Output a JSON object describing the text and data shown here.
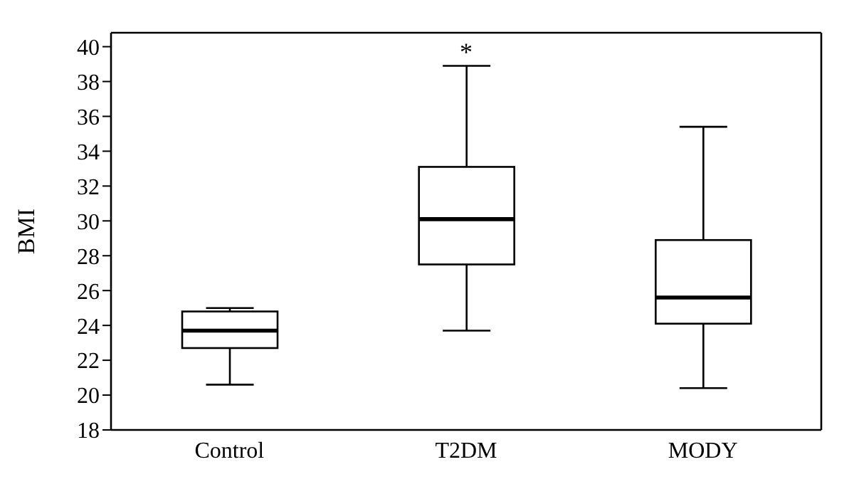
{
  "chart_data": {
    "type": "box",
    "ylabel": "BMI",
    "categories": [
      "Control",
      "T2DM",
      "MODY"
    ],
    "boxes": [
      {
        "low": 20.6,
        "q1": 22.7,
        "median": 23.7,
        "q3": 24.8,
        "high": 25.0
      },
      {
        "low": 23.7,
        "q1": 27.5,
        "median": 30.1,
        "q3": 33.1,
        "high": 38.9
      },
      {
        "low": 20.4,
        "q1": 24.1,
        "median": 25.6,
        "q3": 28.9,
        "high": 35.4
      }
    ],
    "color": "#000000",
    "ylim": [
      18,
      40.8
    ],
    "yticks": [
      18,
      20,
      22,
      24,
      26,
      28,
      30,
      32,
      34,
      36,
      38,
      40
    ],
    "annotations": [
      {
        "text": "*",
        "x": "T2DM",
        "y": 38.9
      }
    ]
  }
}
